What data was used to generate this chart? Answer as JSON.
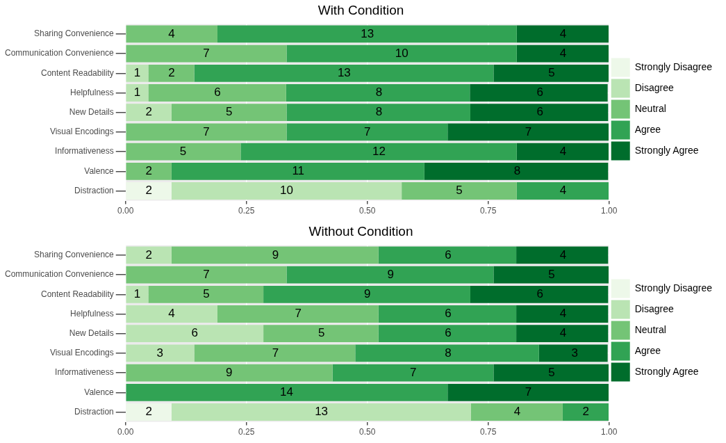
{
  "chart_data": [
    {
      "type": "bar",
      "title": "With Condition",
      "orientation": "horizontal",
      "stacked": true,
      "grid": true,
      "legend": "right",
      "categories": [
        "Sharing Convenience",
        "Communication Convenience",
        "Content Readability",
        "Helpfulness",
        "New Details",
        "Visual Encodings",
        "Informativeness",
        "Valence",
        "Distraction"
      ],
      "xlim": [
        0,
        1
      ],
      "xticks": [
        {
          "value": 0,
          "label": "0.00"
        },
        {
          "value": 0.25,
          "label": "0.25"
        },
        {
          "value": 0.5,
          "label": "0.50"
        },
        {
          "value": 0.75,
          "label": "0.75"
        },
        {
          "value": 1,
          "label": "1.00"
        }
      ],
      "series": [
        {
          "name": "Strongly Disagree",
          "color": "#edf8e9",
          "values": [
            null,
            null,
            null,
            null,
            null,
            null,
            null,
            null,
            0.095
          ]
        },
        {
          "name": "Disagree",
          "color": "#bae4b3",
          "values": [
            null,
            null,
            0.047,
            0.047,
            0.095,
            null,
            null,
            null,
            0.476
          ]
        },
        {
          "name": "Neutral",
          "color": "#74c476",
          "values": [
            0.19,
            0.333,
            0.095,
            0.285,
            0.238,
            0.333,
            0.238,
            0.095,
            0.238
          ]
        },
        {
          "name": "Agree",
          "color": "#31a354",
          "values": [
            0.619,
            0.476,
            0.619,
            0.38,
            0.38,
            0.333,
            0.571,
            0.523,
            0.19
          ]
        },
        {
          "name": "Strongly Agree",
          "color": "#006d2c",
          "values": [
            0.19,
            0.19,
            0.238,
            0.285,
            0.285,
            0.333,
            0.19,
            0.38,
            null
          ]
        }
      ],
      "annotations": [
        {
          "text": "4",
          "x": 0.095,
          "y": "Sharing Convenience"
        },
        {
          "text": "13",
          "x": 0.5,
          "y": "Sharing Convenience"
        },
        {
          "text": "4",
          "x": 0.905,
          "y": "Sharing Convenience"
        },
        {
          "text": "7",
          "x": 0.167,
          "y": "Communication Convenience"
        },
        {
          "text": "10",
          "x": 0.571,
          "y": "Communication Convenience"
        },
        {
          "text": "4",
          "x": 0.905,
          "y": "Communication Convenience"
        },
        {
          "text": "1",
          "x": 0.024,
          "y": "Content Readability"
        },
        {
          "text": "2",
          "x": 0.095,
          "y": "Content Readability"
        },
        {
          "text": "13",
          "x": 0.452,
          "y": "Content Readability"
        },
        {
          "text": "5",
          "x": 0.881,
          "y": "Content Readability"
        },
        {
          "text": "1",
          "x": 0.024,
          "y": "Helpfulness"
        },
        {
          "text": "6",
          "x": 0.19,
          "y": "Helpfulness"
        },
        {
          "text": "8",
          "x": 0.524,
          "y": "Helpfulness"
        },
        {
          "text": "6",
          "x": 0.857,
          "y": "Helpfulness"
        },
        {
          "text": "2",
          "x": 0.048,
          "y": "New Details"
        },
        {
          "text": "5",
          "x": 0.214,
          "y": "New Details"
        },
        {
          "text": "8",
          "x": 0.524,
          "y": "New Details"
        },
        {
          "text": "6",
          "x": 0.857,
          "y": "New Details"
        },
        {
          "text": "7",
          "x": 0.167,
          "y": "Visual Encodings"
        },
        {
          "text": "7",
          "x": 0.5,
          "y": "Visual Encodings"
        },
        {
          "text": "7",
          "x": 0.833,
          "y": "Visual Encodings"
        },
        {
          "text": "5",
          "x": 0.119,
          "y": "Informativeness"
        },
        {
          "text": "12",
          "x": 0.524,
          "y": "Informativeness"
        },
        {
          "text": "4",
          "x": 0.905,
          "y": "Informativeness"
        },
        {
          "text": "2",
          "x": 0.048,
          "y": "Valence"
        },
        {
          "text": "11",
          "x": 0.357,
          "y": "Valence"
        },
        {
          "text": "8",
          "x": 0.81,
          "y": "Valence"
        },
        {
          "text": "2",
          "x": 0.048,
          "y": "Distraction"
        },
        {
          "text": "10",
          "x": 0.333,
          "y": "Distraction"
        },
        {
          "text": "5",
          "x": 0.69,
          "y": "Distraction"
        },
        {
          "text": "4",
          "x": 0.905,
          "y": "Distraction"
        }
      ]
    },
    {
      "type": "bar",
      "title": "Without Condition",
      "orientation": "horizontal",
      "stacked": true,
      "grid": true,
      "legend": "right",
      "categories": [
        "Sharing Convenience",
        "Communication Convenience",
        "Content Readability",
        "Helpfulness",
        "New Details",
        "Visual Encodings",
        "Informativeness",
        "Valence",
        "Distraction"
      ],
      "xlim": [
        0,
        1
      ],
      "xticks": [
        {
          "value": 0,
          "label": "0.00"
        },
        {
          "value": 0.25,
          "label": "0.25"
        },
        {
          "value": 0.5,
          "label": "0.50"
        },
        {
          "value": 0.75,
          "label": "0.75"
        },
        {
          "value": 1,
          "label": "1.00"
        }
      ],
      "series": [
        {
          "name": "Strongly Disagree",
          "color": "#edf8e9",
          "values": [
            null,
            null,
            null,
            null,
            null,
            null,
            null,
            null,
            0.095
          ]
        },
        {
          "name": "Disagree",
          "color": "#bae4b3",
          "values": [
            0.095,
            null,
            0.047,
            0.19,
            0.285,
            0.142,
            null,
            null,
            0.619
          ]
        },
        {
          "name": "Neutral",
          "color": "#74c476",
          "values": [
            0.428,
            0.333,
            0.238,
            0.333,
            0.238,
            0.333,
            0.428,
            null,
            0.19
          ]
        },
        {
          "name": "Agree",
          "color": "#31a354",
          "values": [
            0.285,
            0.428,
            0.428,
            0.285,
            0.285,
            0.38,
            0.333,
            0.666,
            0.095
          ]
        },
        {
          "name": "Strongly Agree",
          "color": "#006d2c",
          "values": [
            0.19,
            0.238,
            0.285,
            0.19,
            0.19,
            0.142,
            0.238,
            0.333,
            null
          ]
        }
      ],
      "annotations": [
        {
          "text": "2",
          "x": 0.048,
          "y": "Sharing Convenience"
        },
        {
          "text": "9",
          "x": 0.31,
          "y": "Sharing Convenience"
        },
        {
          "text": "6",
          "x": 0.667,
          "y": "Sharing Convenience"
        },
        {
          "text": "4",
          "x": 0.905,
          "y": "Sharing Convenience"
        },
        {
          "text": "7",
          "x": 0.167,
          "y": "Communication Convenience"
        },
        {
          "text": "9",
          "x": 0.548,
          "y": "Communication Convenience"
        },
        {
          "text": "5",
          "x": 0.881,
          "y": "Communication Convenience"
        },
        {
          "text": "1",
          "x": 0.024,
          "y": "Content Readability"
        },
        {
          "text": "5",
          "x": 0.167,
          "y": "Content Readability"
        },
        {
          "text": "9",
          "x": 0.5,
          "y": "Content Readability"
        },
        {
          "text": "6",
          "x": 0.857,
          "y": "Content Readability"
        },
        {
          "text": "4",
          "x": 0.095,
          "y": "Helpfulness"
        },
        {
          "text": "7",
          "x": 0.357,
          "y": "Helpfulness"
        },
        {
          "text": "6",
          "x": 0.667,
          "y": "Helpfulness"
        },
        {
          "text": "4",
          "x": 0.905,
          "y": "Helpfulness"
        },
        {
          "text": "6",
          "x": 0.143,
          "y": "New Details"
        },
        {
          "text": "5",
          "x": 0.405,
          "y": "New Details"
        },
        {
          "text": "6",
          "x": 0.667,
          "y": "New Details"
        },
        {
          "text": "4",
          "x": 0.905,
          "y": "New Details"
        },
        {
          "text": "3",
          "x": 0.071,
          "y": "Visual Encodings"
        },
        {
          "text": "7",
          "x": 0.31,
          "y": "Visual Encodings"
        },
        {
          "text": "8",
          "x": 0.667,
          "y": "Visual Encodings"
        },
        {
          "text": "3",
          "x": 0.929,
          "y": "Visual Encodings"
        },
        {
          "text": "9",
          "x": 0.214,
          "y": "Informativeness"
        },
        {
          "text": "7",
          "x": 0.595,
          "y": "Informativeness"
        },
        {
          "text": "5",
          "x": 0.881,
          "y": "Informativeness"
        },
        {
          "text": "14",
          "x": 0.333,
          "y": "Valence"
        },
        {
          "text": "7",
          "x": 0.833,
          "y": "Valence"
        },
        {
          "text": "2",
          "x": 0.048,
          "y": "Distraction"
        },
        {
          "text": "13",
          "x": 0.405,
          "y": "Distraction"
        },
        {
          "text": "4",
          "x": 0.81,
          "y": "Distraction"
        },
        {
          "text": "2",
          "x": 0.952,
          "y": "Distraction"
        }
      ]
    }
  ]
}
